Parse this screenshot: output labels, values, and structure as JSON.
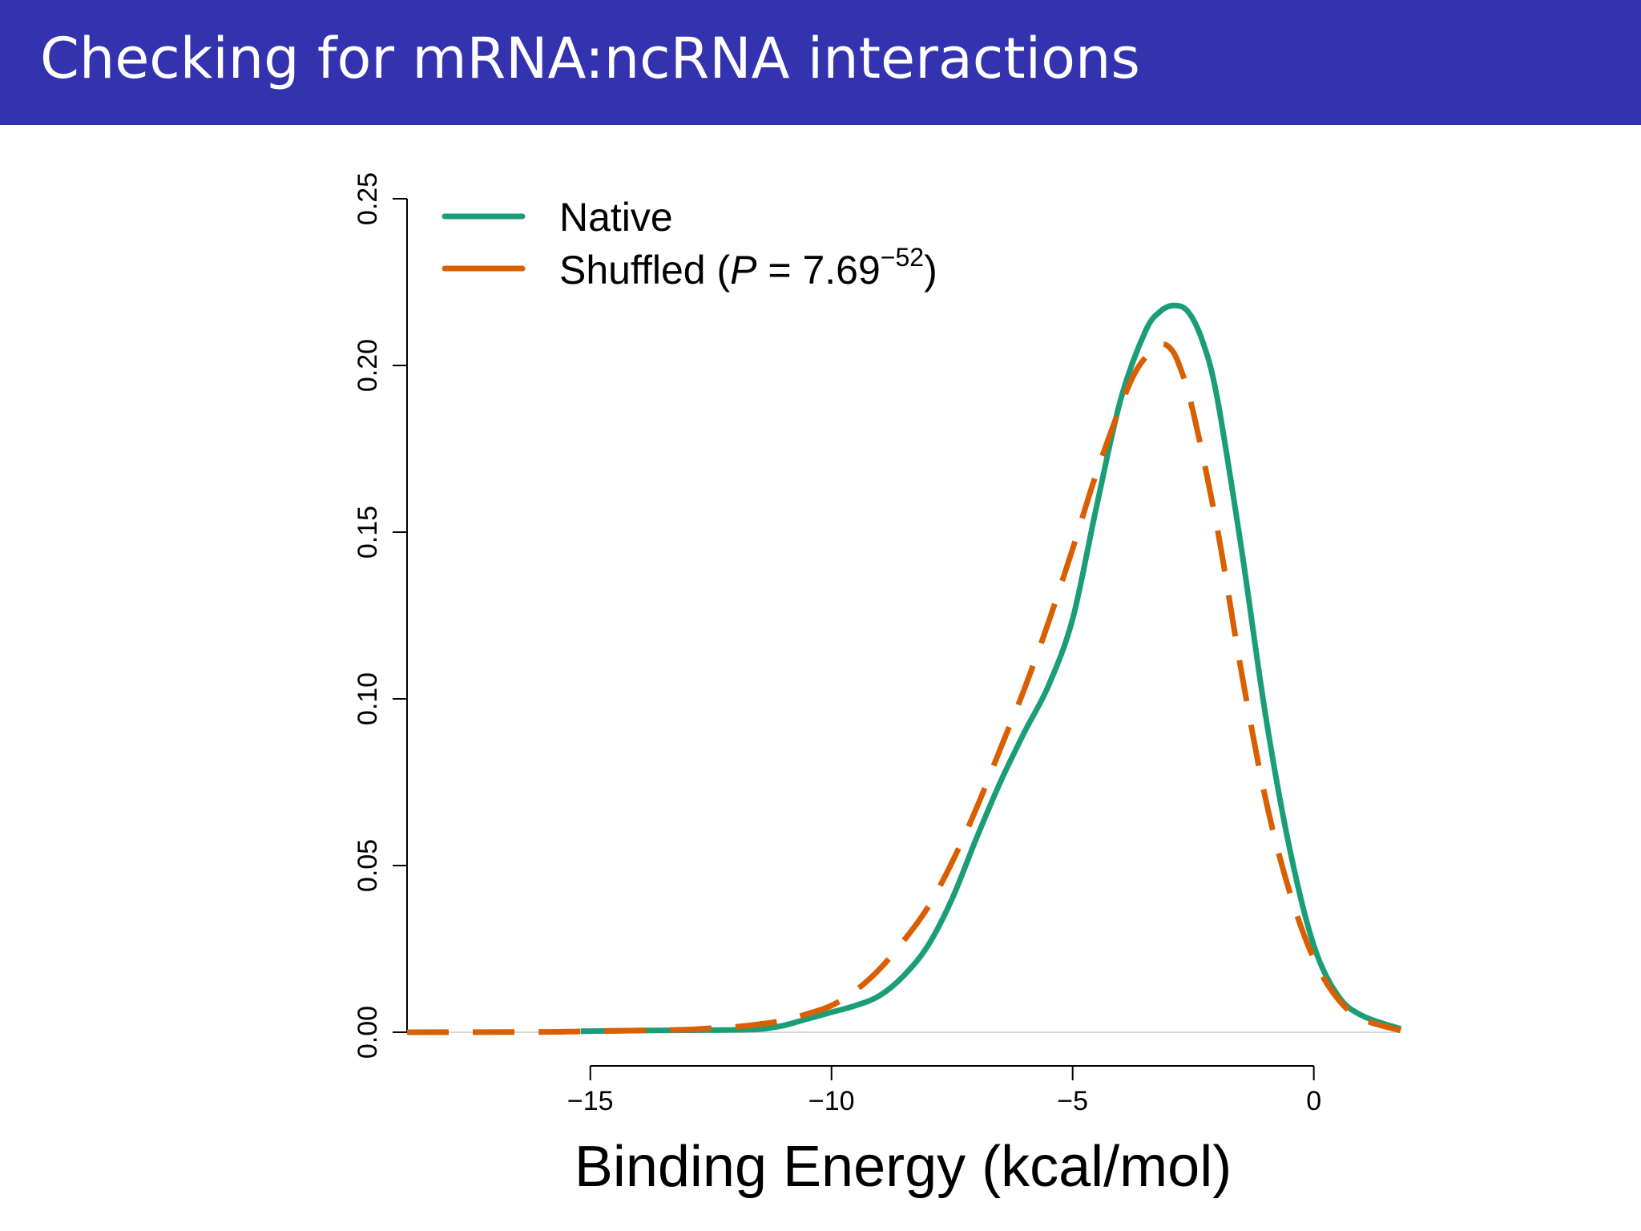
{
  "slide": {
    "title": "Checking for mRNA:ncRNA interactions"
  },
  "colors": {
    "title_bar": "#3333b0",
    "native": "#1b9e77",
    "shuffled": "#d95f02"
  },
  "chart_data": {
    "type": "line",
    "title": "",
    "xlabel": "Binding Energy (kcal/mol)",
    "ylabel": "",
    "xlim": [
      -18.8,
      1.8
    ],
    "ylim": [
      0,
      0.25
    ],
    "xticks": [
      -15,
      -10,
      -5,
      0
    ],
    "xtick_labels": [
      "−15",
      "−10",
      "−5",
      "0"
    ],
    "yticks": [
      0,
      0.05,
      0.1,
      0.15,
      0.2,
      0.25
    ],
    "ytick_labels": [
      "0.00",
      "0.05",
      "0.10",
      "0.15",
      "0.20",
      "0.25"
    ],
    "grid": false,
    "legend_position": "top-left",
    "legend": {
      "native_label": "Native",
      "shuffled_prefix": "Shuffled (",
      "shuffled_p": "P",
      "shuffled_eq": " = 7.69",
      "shuffled_exp": "−52",
      "shuffled_suffix": ")"
    },
    "series": [
      {
        "name": "Native",
        "style": "solid",
        "x": [
          -15.2,
          -14,
          -13,
          -12,
          -11.5,
          -11,
          -10.5,
          -10,
          -9.5,
          -9,
          -8.5,
          -8,
          -7.5,
          -7,
          -6.5,
          -6,
          -5.5,
          -5,
          -4.5,
          -4,
          -3.5,
          -3.2,
          -2.9,
          -2.6,
          -2.3,
          -2,
          -1.5,
          -1,
          -0.5,
          0,
          0.5,
          1,
          1.8
        ],
        "y": [
          0.0003,
          0.0005,
          0.0006,
          0.0007,
          0.0009,
          0.002,
          0.004,
          0.006,
          0.008,
          0.011,
          0.017,
          0.026,
          0.04,
          0.058,
          0.075,
          0.09,
          0.104,
          0.124,
          0.158,
          0.19,
          0.21,
          0.216,
          0.218,
          0.216,
          0.207,
          0.19,
          0.145,
          0.095,
          0.055,
          0.026,
          0.011,
          0.005,
          0.001
        ]
      },
      {
        "name": "Shuffled",
        "style": "dashed",
        "x": [
          -18.8,
          -16,
          -15,
          -14,
          -13,
          -12.5,
          -12,
          -11.5,
          -11,
          -10.5,
          -10,
          -9.5,
          -9,
          -8.5,
          -8,
          -7.5,
          -7,
          -6.5,
          -6,
          -5.5,
          -5,
          -4.5,
          -4,
          -3.7,
          -3.4,
          -3.2,
          -3,
          -2.8,
          -2.5,
          -2,
          -1.5,
          -1,
          -0.5,
          0,
          0.5,
          1,
          1.8
        ],
        "y": [
          0.0,
          0.0001,
          0.0003,
          0.0005,
          0.0008,
          0.0012,
          0.0016,
          0.0024,
          0.0035,
          0.0055,
          0.008,
          0.0125,
          0.019,
          0.0275,
          0.0375,
          0.051,
          0.067,
          0.085,
          0.103,
          0.123,
          0.145,
          0.168,
          0.188,
          0.198,
          0.204,
          0.2063,
          0.2055,
          0.2005,
          0.186,
          0.151,
          0.108,
          0.07,
          0.042,
          0.022,
          0.01,
          0.004,
          0.0005
        ]
      }
    ]
  }
}
